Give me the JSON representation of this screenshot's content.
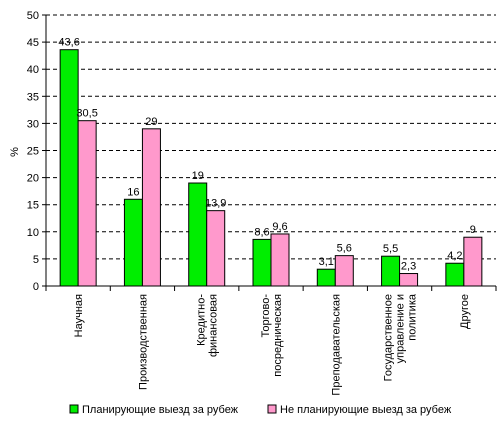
{
  "chart_data": {
    "type": "bar",
    "ylabel": "%",
    "ylim": [
      0,
      50
    ],
    "yticks": [
      0,
      5,
      10,
      15,
      20,
      25,
      30,
      35,
      40,
      45,
      50
    ],
    "grid": "horizontal dashed",
    "legend_position": "bottom",
    "categories": [
      [
        "Научная"
      ],
      [
        "Производственная"
      ],
      [
        "Кредитно-",
        "финансовая"
      ],
      [
        "Торгово-",
        "посредническая"
      ],
      [
        "Преподавательская"
      ],
      [
        "Государственное",
        "управление и",
        "политика"
      ],
      [
        "Другое"
      ]
    ],
    "series": [
      {
        "name": "Планирующие выезд за рубеж",
        "color": "#00ee00",
        "values": [
          43.6,
          16,
          19,
          8.6,
          3.1,
          5.5,
          4.2
        ],
        "labels": [
          "43,6",
          "16",
          "19",
          "8,6",
          "3,1",
          "5,5",
          "4,2"
        ]
      },
      {
        "name": "Не планирующие выезд за рубеж",
        "color": "#ff99cc",
        "values": [
          30.5,
          29,
          13.9,
          9.6,
          5.6,
          2.3,
          9
        ],
        "labels": [
          "30,5",
          "29",
          "13,9",
          "9,6",
          "5,6",
          "2,3",
          "9"
        ]
      }
    ]
  }
}
